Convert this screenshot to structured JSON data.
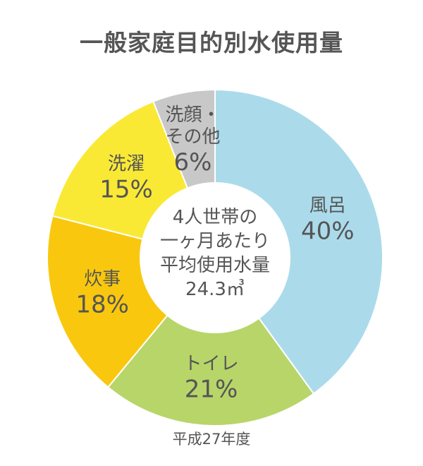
{
  "title": "一般家庭目的別水使用量",
  "footnote": "平成27年度",
  "center_text": {
    "line1": "4人世帯の",
    "line2": "一ヶ月あたり",
    "line3": "平均使用水量",
    "line4": "24.3㎥"
  },
  "colors": {
    "bath": "#ABDBEB",
    "toilet": "#B8D56A",
    "kitchen": "#F9C80E",
    "laundry": "#F9E935",
    "other": "#C8C8C8",
    "text": "#555555"
  },
  "chart_data": {
    "type": "pie",
    "title": "一般家庭目的別水使用量",
    "slices": [
      {
        "name": "風呂",
        "value": 40,
        "label": "40%",
        "color": "#ABDBEB"
      },
      {
        "name": "トイレ",
        "value": 21,
        "label": "21%",
        "color": "#B8D56A"
      },
      {
        "name": "炊事",
        "value": 18,
        "label": "18%",
        "color": "#F9C80E"
      },
      {
        "name": "洗濯",
        "value": 15,
        "label": "15%",
        "color": "#F9E935"
      },
      {
        "name": "洗顔・その他",
        "name_lines": [
          "洗顔・",
          "その他"
        ],
        "value": 6,
        "label": "6%",
        "color": "#C8C8C8"
      }
    ],
    "donut": true,
    "start": "top",
    "direction": "clockwise"
  }
}
